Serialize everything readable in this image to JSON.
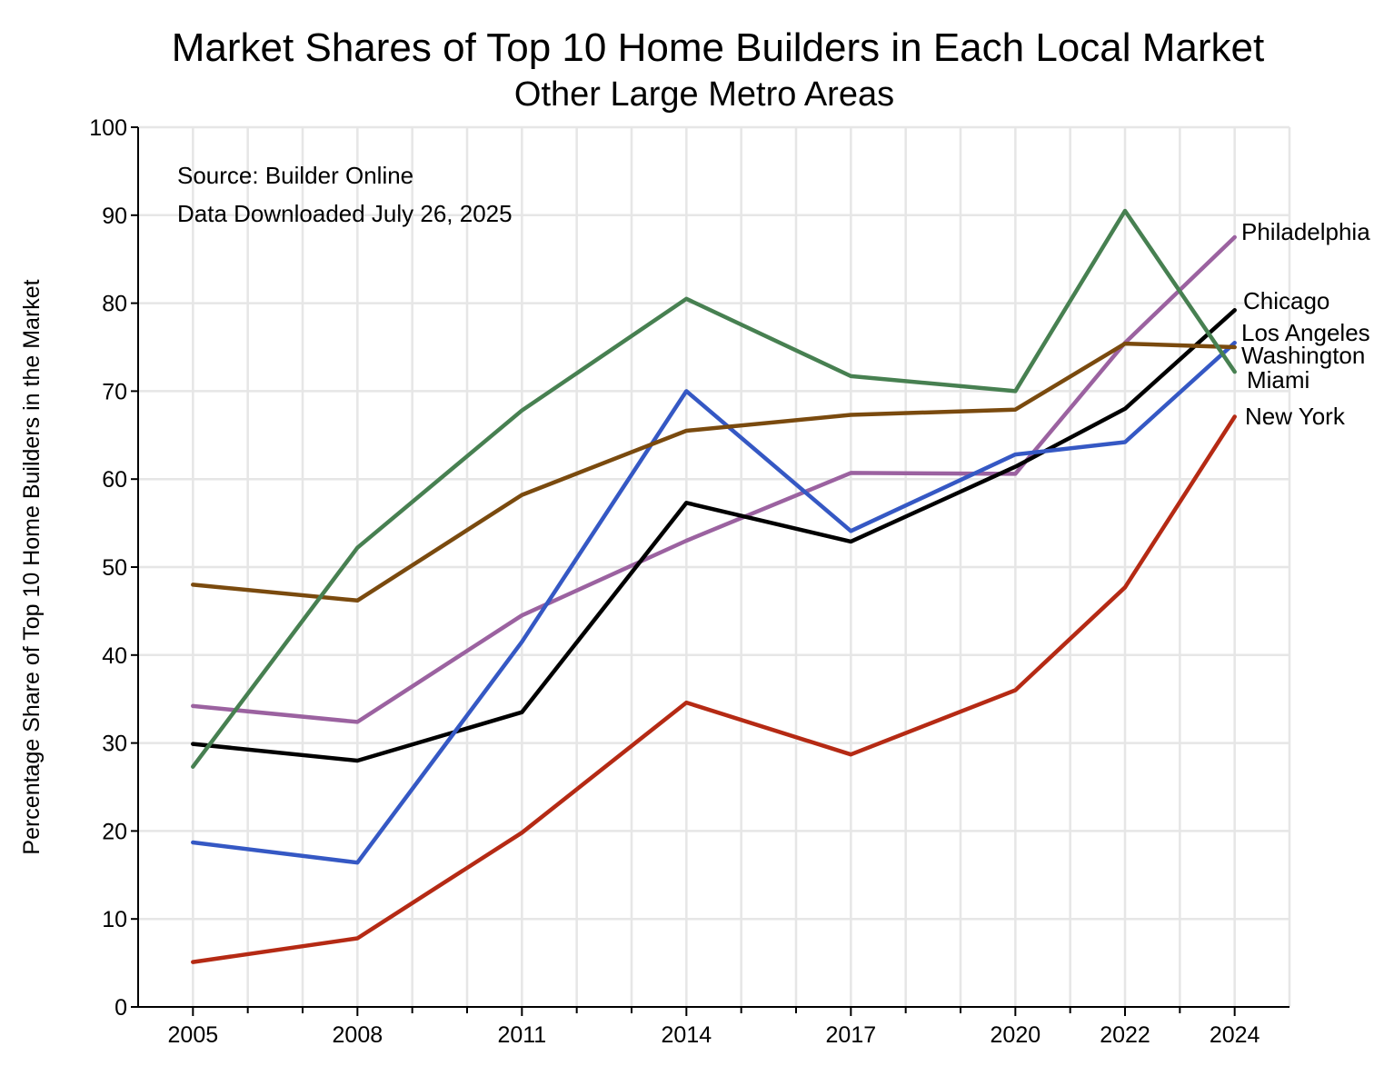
{
  "chart_data": {
    "type": "line",
    "title": "Market Shares of Top 10 Home Builders in Each Local Market",
    "subtitle": "Other Large Metro Areas",
    "xlabel": "",
    "ylabel": "Percentage Share of Top 10 Home Builders in the Market",
    "ylim": [
      0,
      100
    ],
    "xlim": [
      2004,
      2025
    ],
    "yticks": [
      0,
      10,
      20,
      30,
      40,
      50,
      60,
      70,
      80,
      90,
      100
    ],
    "xticks_labeled": [
      2005,
      2008,
      2011,
      2014,
      2017,
      2020,
      2022,
      2024
    ],
    "xticks_minor": [
      2006,
      2007,
      2009,
      2010,
      2012,
      2013,
      2015,
      2016,
      2018,
      2019,
      2021,
      2023
    ],
    "grid": true,
    "annotations": [
      "Source:  Builder Online",
      "Data Downloaded July 26, 2025"
    ],
    "x": [
      2005,
      2008,
      2011,
      2014,
      2017,
      2020,
      2022,
      2024
    ],
    "series": [
      {
        "name": "Philadelphia",
        "color": "#9b62a0",
        "values": [
          34.2,
          32.4,
          44.5,
          53.0,
          60.7,
          60.6,
          75.5,
          87.5
        ]
      },
      {
        "name": "Chicago",
        "color": "#000000",
        "values": [
          29.9,
          28.0,
          33.5,
          57.3,
          52.9,
          61.4,
          68.0,
          79.2
        ]
      },
      {
        "name": "Los Angeles",
        "color": "#3558c4",
        "values": [
          18.7,
          16.4,
          41.5,
          70.0,
          54.1,
          62.8,
          64.2,
          75.5
        ]
      },
      {
        "name": "Washington",
        "color": "#7a4a0e",
        "values": [
          48.0,
          46.2,
          58.2,
          65.5,
          67.3,
          67.9,
          75.4,
          75.0
        ]
      },
      {
        "name": "Miami",
        "color": "#478051",
        "values": [
          27.3,
          52.2,
          67.8,
          80.5,
          71.7,
          70.0,
          90.5,
          72.2
        ]
      },
      {
        "name": "New York",
        "color": "#b52a14",
        "values": [
          5.1,
          7.8,
          19.8,
          34.6,
          28.7,
          36.0,
          47.7,
          67.1
        ]
      }
    ]
  }
}
